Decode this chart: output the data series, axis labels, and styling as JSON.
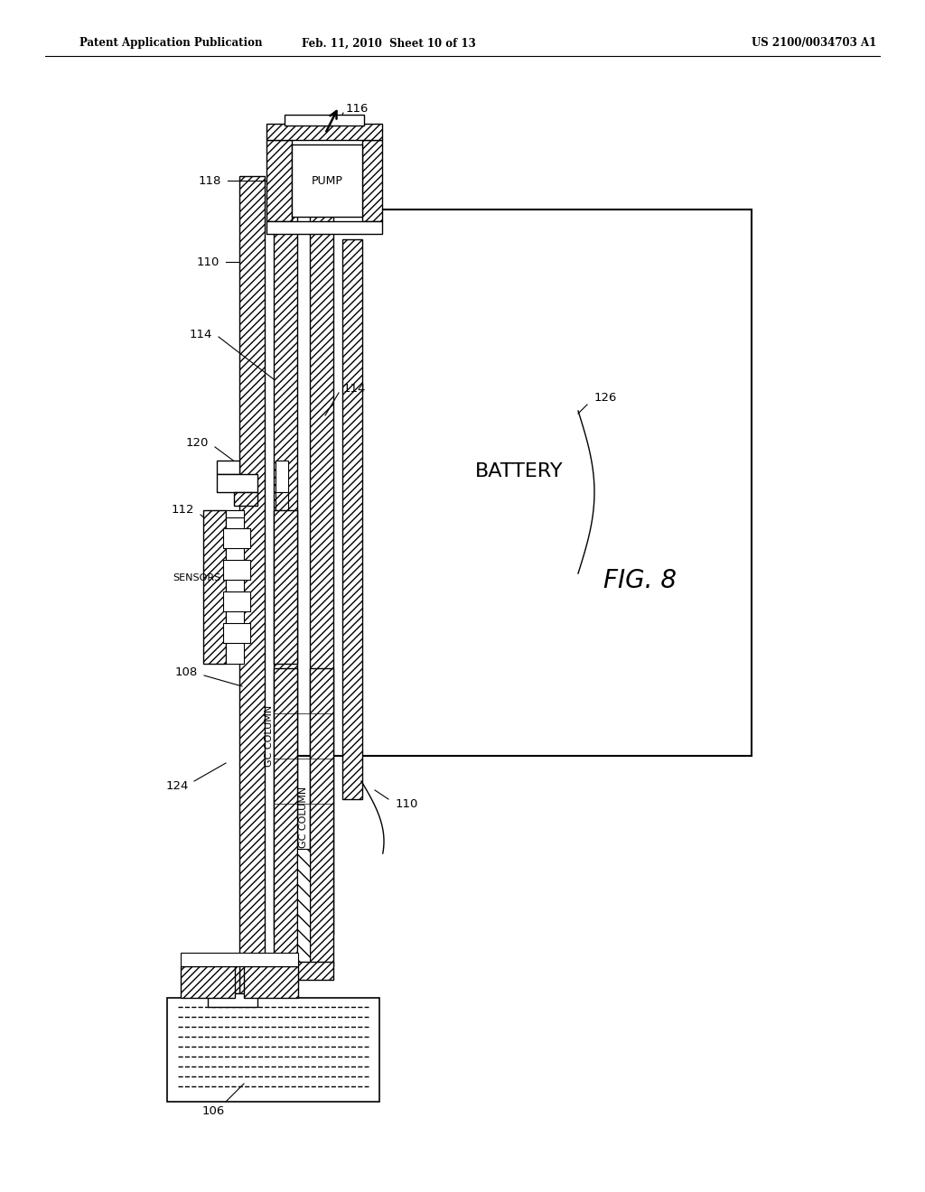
{
  "header_left": "Patent Application Publication",
  "header_mid": "Feb. 11, 2010  Sheet 10 of 13",
  "header_right": "US 2100/0034703 A1",
  "fig_label": "FIG. 8",
  "bg_color": "#ffffff"
}
